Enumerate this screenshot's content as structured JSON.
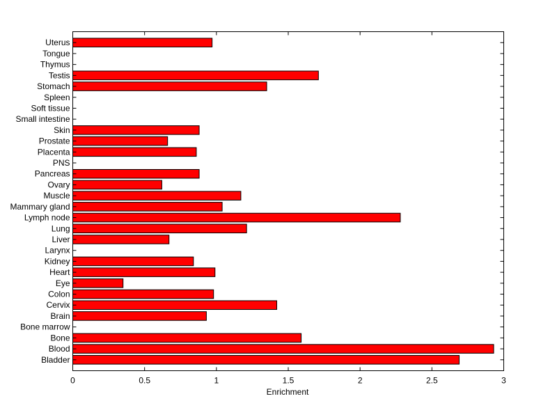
{
  "chart_data": {
    "type": "bar",
    "orientation": "horizontal",
    "categories": [
      "Bladder",
      "Blood",
      "Bone",
      "Bone marrow",
      "Brain",
      "Cervix",
      "Colon",
      "Eye",
      "Heart",
      "Kidney",
      "Larynx",
      "Liver",
      "Lung",
      "Lymph node",
      "Mammary gland",
      "Muscle",
      "Ovary",
      "Pancreas",
      "PNS",
      "Placenta",
      "Prostate",
      "Skin",
      "Small intestine",
      "Soft tissue",
      "Spleen",
      "Stomach",
      "Testis",
      "Thymus",
      "Tongue",
      "Uterus"
    ],
    "values": [
      2.69,
      2.93,
      1.59,
      0,
      0.93,
      1.42,
      0.98,
      0.35,
      0.99,
      0.84,
      0,
      0.67,
      1.21,
      2.28,
      1.04,
      1.17,
      0.62,
      0.88,
      0,
      0.86,
      0.66,
      0.88,
      0,
      0,
      0,
      1.35,
      1.71,
      0,
      0,
      0.97
    ],
    "xlabel": "Enrichment",
    "ylabel": "",
    "title": "",
    "xlim": [
      0,
      3
    ],
    "xticks": [
      0,
      0.5,
      1,
      1.5,
      2,
      2.5,
      3
    ],
    "xtick_labels": [
      "0",
      "0.5",
      "1",
      "1.5",
      "2",
      "2.5",
      "3"
    ],
    "bar_color": "#ff0000",
    "edge_color": "#000000",
    "grid": false,
    "legend": "none"
  }
}
